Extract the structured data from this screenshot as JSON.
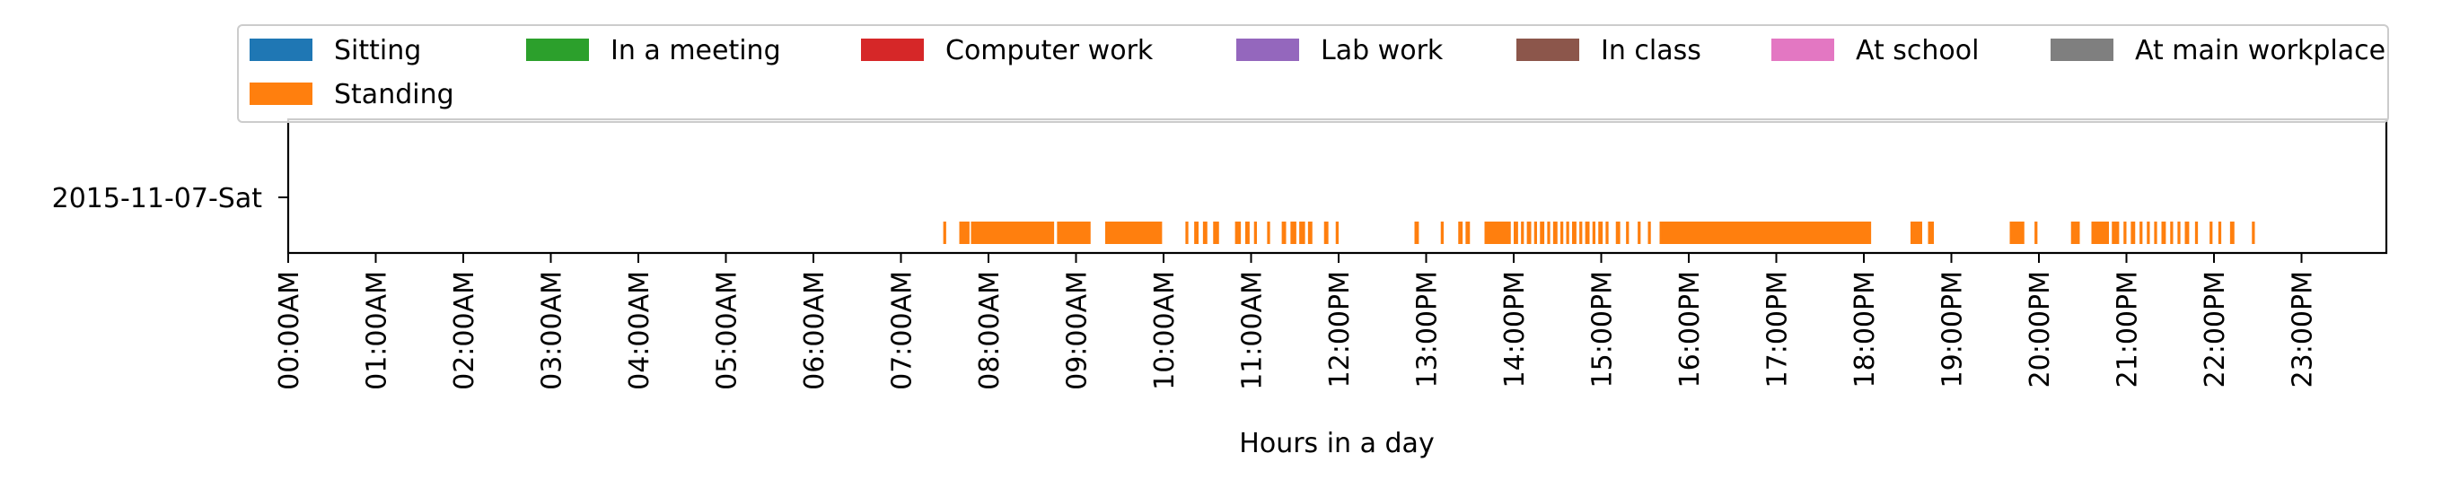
{
  "chart_data": {
    "type": "timeline",
    "xlabel": "Hours in a day",
    "ylabel": "",
    "title": "",
    "categories": [
      "2015-11-07-Sat"
    ],
    "xlim_hours": [
      0,
      24
    ],
    "x_ticks": [
      "00:00AM",
      "01:00AM",
      "02:00AM",
      "03:00AM",
      "04:00AM",
      "05:00AM",
      "06:00AM",
      "07:00AM",
      "08:00AM",
      "09:00AM",
      "10:00AM",
      "11:00AM",
      "12:00PM",
      "13:00PM",
      "14:00PM",
      "15:00PM",
      "16:00PM",
      "17:00PM",
      "18:00PM",
      "19:00PM",
      "20:00PM",
      "21:00PM",
      "22:00PM",
      "23:00PM"
    ],
    "legend": {
      "placement": "top",
      "entries": [
        {
          "name": "Sitting",
          "color": "#1f77b4"
        },
        {
          "name": "In a meeting",
          "color": "#2ca02c"
        },
        {
          "name": "Computer work",
          "color": "#d62728"
        },
        {
          "name": "Lab work",
          "color": "#9467bd"
        },
        {
          "name": "In class",
          "color": "#8c564b"
        },
        {
          "name": "At school",
          "color": "#e377c2"
        },
        {
          "name": "At main workplace",
          "color": "#7f7f7f"
        },
        {
          "name": "Standing",
          "color": "#ff7f0e"
        }
      ]
    },
    "series": [
      {
        "name": "Standing",
        "color": "#ff7f0e",
        "day": "2015-11-07-Sat",
        "intervals": [
          [
            "07:29",
            "07:31"
          ],
          [
            "07:40",
            "07:47"
          ],
          [
            "07:48",
            "08:45"
          ],
          [
            "08:47",
            "09:10"
          ],
          [
            "09:20",
            "09:59"
          ],
          [
            "10:15",
            "10:17"
          ],
          [
            "10:21",
            "10:24"
          ],
          [
            "10:27",
            "10:30"
          ],
          [
            "10:34",
            "10:38"
          ],
          [
            "10:49",
            "10:53"
          ],
          [
            "10:56",
            "10:59"
          ],
          [
            "11:02",
            "11:04"
          ],
          [
            "11:11",
            "11:13"
          ],
          [
            "11:21",
            "11:24"
          ],
          [
            "11:27",
            "11:31"
          ],
          [
            "11:33",
            "11:37"
          ],
          [
            "11:39",
            "11:42"
          ],
          [
            "11:50",
            "11:53"
          ],
          [
            "11:58",
            "12:00"
          ],
          [
            "12:52",
            "12:55"
          ],
          [
            "13:10",
            "13:12"
          ],
          [
            "13:22",
            "13:25"
          ],
          [
            "13:27",
            "13:30"
          ],
          [
            "13:40",
            "13:58"
          ],
          [
            "14:00",
            "14:03"
          ],
          [
            "14:05",
            "14:07"
          ],
          [
            "14:09",
            "14:12"
          ],
          [
            "14:14",
            "14:16"
          ],
          [
            "14:18",
            "14:21"
          ],
          [
            "14:23",
            "14:25"
          ],
          [
            "14:27",
            "14:30"
          ],
          [
            "14:32",
            "14:34"
          ],
          [
            "14:36",
            "14:38"
          ],
          [
            "14:40",
            "14:43"
          ],
          [
            "14:45",
            "14:47"
          ],
          [
            "14:49",
            "14:52"
          ],
          [
            "14:54",
            "14:56"
          ],
          [
            "14:58",
            "15:01"
          ],
          [
            "15:03",
            "15:05"
          ],
          [
            "15:10",
            "15:13"
          ],
          [
            "15:17",
            "15:19"
          ],
          [
            "15:25",
            "15:27"
          ],
          [
            "15:32",
            "15:34"
          ],
          [
            "15:40",
            "15:47"
          ],
          [
            "15:42",
            "18:05"
          ],
          [
            "18:32",
            "18:40"
          ],
          [
            "18:44",
            "18:48"
          ],
          [
            "19:40",
            "19:50"
          ],
          [
            "19:57",
            "19:59"
          ],
          [
            "20:22",
            "20:28"
          ],
          [
            "20:36",
            "20:48"
          ],
          [
            "20:50",
            "20:55"
          ],
          [
            "20:58",
            "21:00"
          ],
          [
            "21:03",
            "21:06"
          ],
          [
            "21:09",
            "21:11"
          ],
          [
            "21:14",
            "21:16"
          ],
          [
            "21:19",
            "21:21"
          ],
          [
            "21:24",
            "21:27"
          ],
          [
            "21:30",
            "21:32"
          ],
          [
            "21:35",
            "21:37"
          ],
          [
            "21:40",
            "21:43"
          ],
          [
            "21:47",
            "21:49"
          ],
          [
            "21:57",
            "21:59"
          ],
          [
            "22:03",
            "22:05"
          ],
          [
            "22:11",
            "22:14"
          ],
          [
            "22:26",
            "22:28"
          ]
        ]
      }
    ]
  }
}
